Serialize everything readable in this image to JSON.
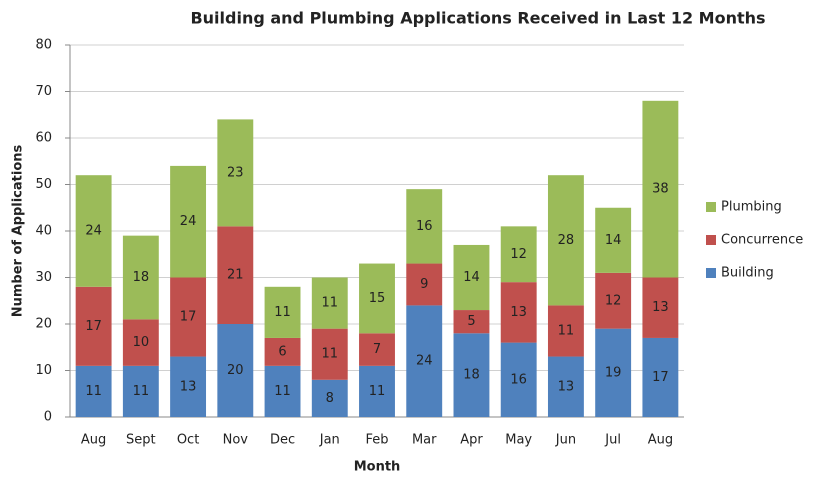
{
  "chart_data": {
    "type": "stacked_bar",
    "title": "Building and Plumbing Applications Received in Last 12 Months",
    "x_label": "Month",
    "y_label": "Number of Applications",
    "categories": [
      "Aug",
      "Sept",
      "Oct",
      "Nov",
      "Dec",
      "Jan",
      "Feb",
      "Mar",
      "Apr",
      "May",
      "Jun",
      "Jul",
      "Aug"
    ],
    "series": [
      {
        "name": "Building",
        "color": "#4f81bd",
        "values": [
          11,
          11,
          13,
          20,
          11,
          8,
          11,
          24,
          18,
          16,
          13,
          19,
          17
        ]
      },
      {
        "name": "Concurrence",
        "color": "#c0504d",
        "values": [
          17,
          10,
          17,
          21,
          6,
          11,
          7,
          9,
          5,
          13,
          11,
          12,
          13
        ]
      },
      {
        "name": "Plumbing",
        "color": "#9bbb59",
        "values": [
          24,
          18,
          24,
          23,
          11,
          11,
          15,
          16,
          14,
          12,
          28,
          14,
          38
        ]
      }
    ],
    "ylim": [
      0,
      80
    ],
    "yticks": [
      0,
      10,
      20,
      30,
      40,
      50,
      60,
      70,
      80
    ],
    "grid": true,
    "legend": "right"
  }
}
